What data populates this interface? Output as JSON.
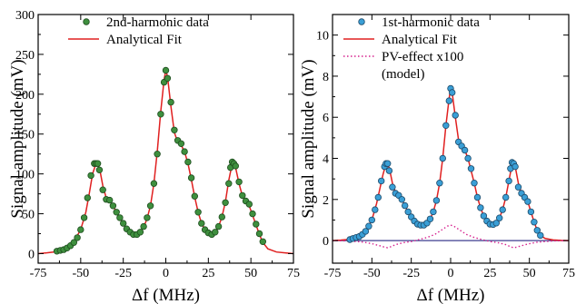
{
  "chart_data": [
    {
      "type": "scatter",
      "xlabel": "Δf (MHz)",
      "ylabel": "Signal amplitude (mV)",
      "xlim": [
        -75,
        75
      ],
      "ylim": [
        -12,
        300
      ],
      "xticks": [
        -75,
        -50,
        -25,
        0,
        25,
        50,
        75
      ],
      "yticks": [
        0,
        50,
        100,
        150,
        200,
        250,
        300
      ],
      "grid": false,
      "legend": "top-center",
      "series": [
        {
          "name": "2nd-harmonic data",
          "kind": "markers",
          "color": "#3e8f3e",
          "edge": "#1e4d1e",
          "x": [
            -64,
            -62,
            -60,
            -58,
            -56,
            -54,
            -52,
            -50,
            -48,
            -46,
            -44,
            -42,
            -41,
            -40,
            -39,
            -37,
            -35,
            -33,
            -31,
            -29,
            -27,
            -25,
            -23,
            -21,
            -19,
            -17,
            -15,
            -13,
            -11,
            -9,
            -7,
            -5,
            -3,
            -1,
            0,
            1,
            3,
            5,
            7,
            9,
            11,
            13,
            15,
            17,
            19,
            21,
            23,
            25,
            27,
            29,
            31,
            33,
            35,
            37,
            38,
            39,
            40,
            41,
            43,
            45,
            47,
            49,
            51,
            53,
            55,
            57
          ],
          "y": [
            3,
            4,
            5,
            7,
            10,
            14,
            20,
            30,
            45,
            70,
            98,
            113,
            113,
            113,
            105,
            80,
            68,
            67,
            60,
            52,
            45,
            38,
            31,
            27,
            24,
            24,
            27,
            34,
            45,
            60,
            88,
            125,
            175,
            215,
            230,
            220,
            190,
            155,
            142,
            138,
            128,
            115,
            95,
            72,
            52,
            38,
            30,
            26,
            24,
            27,
            34,
            46,
            64,
            88,
            108,
            115,
            113,
            110,
            90,
            73,
            66,
            62,
            50,
            37,
            25,
            15
          ]
        },
        {
          "name": "Analytical Fit",
          "kind": "line",
          "color": "#e02020",
          "x": [
            -75,
            -70,
            -66,
            -62,
            -58,
            -54,
            -50,
            -47,
            -45,
            -43,
            -41,
            -39,
            -37,
            -35,
            -33,
            -31,
            -29,
            -27,
            -25,
            -23,
            -21,
            -19,
            -17,
            -15,
            -13,
            -11,
            -9,
            -7,
            -5,
            -3,
            -1,
            0,
            1,
            3,
            5,
            7,
            9,
            11,
            13,
            15,
            17,
            19,
            21,
            23,
            25,
            27,
            29,
            31,
            33,
            35,
            37,
            39,
            41,
            43,
            45,
            47,
            49,
            51,
            53,
            55,
            57,
            60,
            65,
            70,
            75
          ],
          "y": [
            0,
            1,
            2,
            4,
            8,
            15,
            30,
            52,
            75,
            100,
            113,
            108,
            85,
            70,
            66,
            60,
            52,
            44,
            37,
            31,
            27,
            24,
            24,
            27,
            33,
            44,
            60,
            88,
            128,
            178,
            218,
            230,
            222,
            185,
            152,
            140,
            136,
            128,
            113,
            93,
            71,
            52,
            38,
            30,
            26,
            24,
            27,
            34,
            46,
            65,
            92,
            113,
            108,
            88,
            72,
            65,
            60,
            48,
            36,
            24,
            14,
            6,
            2,
            1,
            0
          ]
        }
      ]
    },
    {
      "type": "scatter",
      "xlabel": "Δf (MHz)",
      "ylabel": "Signal amplitude (mV)",
      "xlim": [
        -75,
        75
      ],
      "ylim": [
        -1.1,
        11
      ],
      "xticks": [
        -75,
        -50,
        -25,
        0,
        25,
        50,
        75
      ],
      "yticks": [
        0,
        2,
        4,
        6,
        8,
        10
      ],
      "grid": false,
      "legend": "top-center",
      "baseline_color": "#3d3d8f",
      "series": [
        {
          "name": "1st-harmonic data",
          "kind": "markers",
          "color": "#3a9fd6",
          "edge": "#1d4a6a",
          "x": [
            -64,
            -62,
            -60,
            -58,
            -56,
            -54,
            -52,
            -50,
            -48,
            -46,
            -44,
            -42,
            -41,
            -40,
            -39,
            -37,
            -35,
            -33,
            -31,
            -29,
            -27,
            -25,
            -23,
            -21,
            -19,
            -17,
            -15,
            -13,
            -11,
            -9,
            -7,
            -5,
            -3,
            -1,
            0,
            1,
            3,
            5,
            7,
            9,
            11,
            13,
            15,
            17,
            19,
            21,
            23,
            25,
            27,
            29,
            31,
            33,
            35,
            37,
            38,
            39,
            40,
            41,
            43,
            45,
            47,
            49,
            51,
            53,
            55,
            57
          ],
          "y": [
            0.05,
            0.1,
            0.15,
            0.2,
            0.3,
            0.45,
            0.7,
            1.0,
            1.5,
            2.1,
            2.9,
            3.6,
            3.75,
            3.75,
            3.4,
            2.6,
            2.3,
            2.2,
            2.0,
            1.7,
            1.4,
            1.15,
            0.95,
            0.8,
            0.75,
            0.75,
            0.85,
            1.05,
            1.4,
            1.95,
            2.8,
            4.0,
            5.6,
            6.8,
            7.4,
            7.2,
            6.1,
            4.8,
            4.6,
            4.4,
            4.0,
            3.5,
            2.8,
            2.1,
            1.6,
            1.2,
            0.95,
            0.8,
            0.78,
            0.85,
            1.1,
            1.5,
            2.1,
            2.9,
            3.5,
            3.8,
            3.75,
            3.6,
            2.6,
            2.3,
            2.1,
            1.9,
            1.4,
            0.9,
            0.5,
            0.25
          ]
        },
        {
          "name": "Analytical Fit",
          "kind": "line",
          "color": "#e02020",
          "x": [
            -75,
            -70,
            -66,
            -62,
            -58,
            -54,
            -50,
            -47,
            -45,
            -43,
            -41,
            -39,
            -37,
            -35,
            -33,
            -31,
            -29,
            -27,
            -25,
            -23,
            -21,
            -19,
            -17,
            -15,
            -13,
            -11,
            -9,
            -7,
            -5,
            -3,
            -1,
            0,
            1,
            3,
            5,
            7,
            9,
            11,
            13,
            15,
            17,
            19,
            21,
            23,
            25,
            27,
            29,
            31,
            33,
            35,
            37,
            39,
            41,
            43,
            45,
            47,
            49,
            51,
            53,
            55,
            57,
            60,
            65,
            70,
            75
          ],
          "y": [
            0,
            0.02,
            0.05,
            0.1,
            0.2,
            0.45,
            1.0,
            1.8,
            2.5,
            3.2,
            3.75,
            3.55,
            2.8,
            2.35,
            2.2,
            2.0,
            1.7,
            1.4,
            1.15,
            0.95,
            0.8,
            0.75,
            0.75,
            0.85,
            1.05,
            1.4,
            1.95,
            2.8,
            4.0,
            5.6,
            6.9,
            7.4,
            7.2,
            6.0,
            4.9,
            4.6,
            4.4,
            4.0,
            3.4,
            2.8,
            2.1,
            1.6,
            1.2,
            0.95,
            0.8,
            0.78,
            0.85,
            1.1,
            1.5,
            2.1,
            2.9,
            3.7,
            3.6,
            2.8,
            2.3,
            2.1,
            1.9,
            1.4,
            0.9,
            0.5,
            0.25,
            0.1,
            0.03,
            0.01,
            0
          ]
        },
        {
          "name": "PV-effect x100 (model)",
          "kind": "dotted",
          "color": "#d6208e",
          "x": [
            -75,
            -65,
            -55,
            -50,
            -45,
            -42,
            -40,
            -38,
            -35,
            -30,
            -25,
            -20,
            -15,
            -10,
            -5,
            -2,
            0,
            2,
            5,
            10,
            15,
            20,
            25,
            30,
            35,
            38,
            40,
            42,
            45,
            50,
            55,
            65,
            75
          ],
          "y": [
            0,
            -0.02,
            -0.08,
            -0.15,
            -0.25,
            -0.32,
            -0.35,
            -0.3,
            -0.2,
            -0.1,
            -0.05,
            0.05,
            0.15,
            0.3,
            0.55,
            0.7,
            0.75,
            0.7,
            0.55,
            0.3,
            0.15,
            0.05,
            -0.05,
            -0.1,
            -0.2,
            -0.3,
            -0.35,
            -0.32,
            -0.25,
            -0.15,
            -0.08,
            -0.02,
            0
          ]
        }
      ]
    }
  ],
  "legends": [
    [
      {
        "symbol": "marker",
        "color": "#3e8f3e",
        "edge": "#1e4d1e",
        "label": "2nd-harmonic data"
      },
      {
        "symbol": "line",
        "color": "#e02020",
        "label": "Analytical Fit"
      }
    ],
    [
      {
        "symbol": "marker",
        "color": "#3a9fd6",
        "edge": "#1d4a6a",
        "label": "1st-harmonic data"
      },
      {
        "symbol": "line",
        "color": "#e02020",
        "label": "Analytical Fit"
      },
      {
        "symbol": "dotted",
        "color": "#d6208e",
        "label": "PV-effect x100"
      },
      {
        "symbol": "none",
        "label": "(model)"
      }
    ]
  ]
}
